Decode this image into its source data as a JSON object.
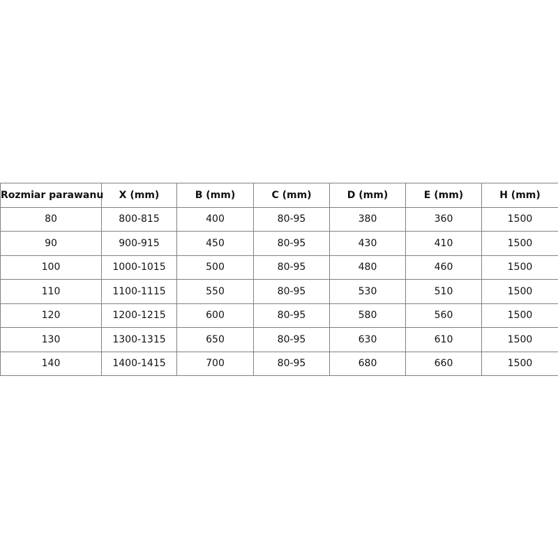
{
  "table": {
    "headers": [
      "Rozmiar parawanu",
      "X (mm)",
      "B (mm)",
      "C (mm)",
      "D (mm)",
      "E (mm)",
      "H (mm)"
    ],
    "rows": [
      [
        "80",
        "800-815",
        "400",
        "80-95",
        "380",
        "360",
        "1500"
      ],
      [
        "90",
        "900-915",
        "450",
        "80-95",
        "430",
        "410",
        "1500"
      ],
      [
        "100",
        "1000-1015",
        "500",
        "80-95",
        "480",
        "460",
        "1500"
      ],
      [
        "110",
        "1100-1115",
        "550",
        "80-95",
        "530",
        "510",
        "1500"
      ],
      [
        "120",
        "1200-1215",
        "600",
        "80-95",
        "580",
        "560",
        "1500"
      ],
      [
        "130",
        "1300-1315",
        "650",
        "80-95",
        "630",
        "610",
        "1500"
      ],
      [
        "140",
        "1400-1415",
        "700",
        "80-95",
        "680",
        "660",
        "1500"
      ]
    ]
  }
}
